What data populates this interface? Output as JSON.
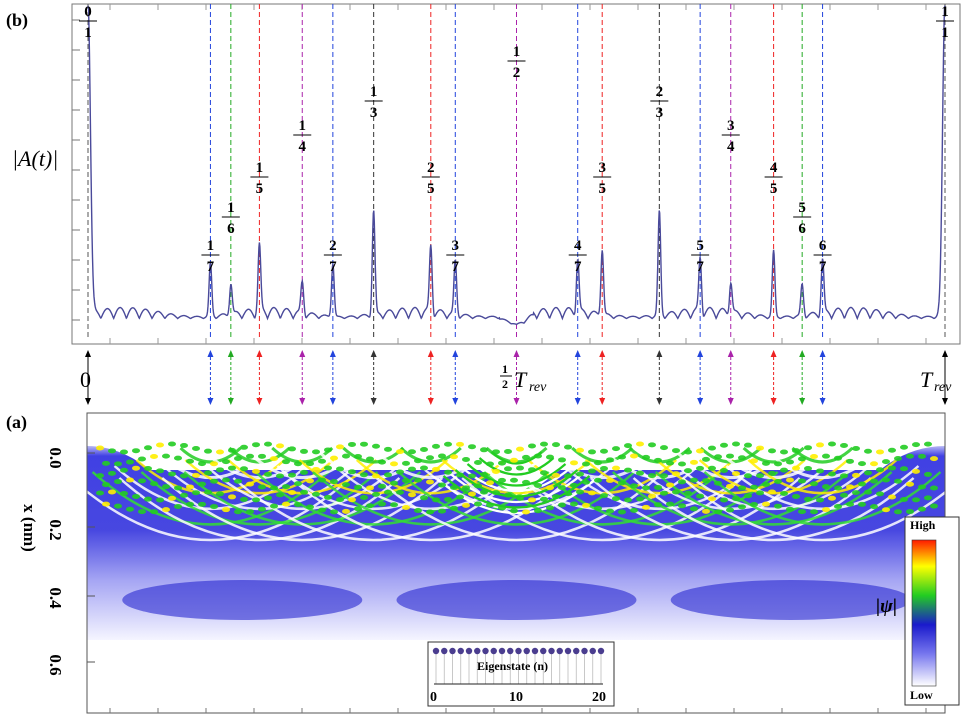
{
  "panel_b": {
    "label": "(b)",
    "ylabel": "|A(t)|",
    "time_labels": {
      "zero": "0",
      "half_num": "1",
      "half_den": "2",
      "half_text": "T",
      "half_sub": "rev",
      "end_text": "T",
      "end_sub": "rev"
    }
  },
  "panel_a": {
    "label": "(a)",
    "ylabel": "x (nm)",
    "yticks": [
      "0.0",
      "0.2",
      "0.4",
      "0.6"
    ],
    "colorbar": {
      "title": "|ψ|",
      "high": "High",
      "low": "Low",
      "colors": [
        "#ffffff",
        "#2222dd",
        "#22cc22",
        "#ffff00",
        "#ff2200"
      ]
    },
    "inset": {
      "xlabel": "Eigenstate (n)",
      "ticks": [
        "0",
        "10",
        "20"
      ],
      "n_points": 21,
      "point_color": "#4a3d8f"
    }
  },
  "chart_data": [
    {
      "type": "line",
      "title": "",
      "ylabel": "|A(t)|",
      "xlabel": "",
      "x_unit": "T_rev",
      "xlim": [
        0,
        1
      ],
      "line_color": "#4a4a9a",
      "revivals": [
        {
          "num": 0,
          "den": 1,
          "t": 0.0,
          "height": 1.0,
          "color": "#555555"
        },
        {
          "num": 1,
          "den": 7,
          "t": 0.142857,
          "height": 0.17,
          "color": "#2244dd"
        },
        {
          "num": 1,
          "den": 6,
          "t": 0.166667,
          "height": 0.1,
          "color": "#22aa22"
        },
        {
          "num": 1,
          "den": 5,
          "t": 0.2,
          "height": 0.21,
          "color": "#ee2222"
        },
        {
          "num": 1,
          "den": 4,
          "t": 0.25,
          "height": 0.1,
          "color": "#aa22aa"
        },
        {
          "num": 2,
          "den": 7,
          "t": 0.285714,
          "height": 0.17,
          "color": "#2244dd"
        },
        {
          "num": 1,
          "den": 3,
          "t": 0.333333,
          "height": 0.33,
          "color": "#333333"
        },
        {
          "num": 2,
          "den": 5,
          "t": 0.4,
          "height": 0.21,
          "color": "#ee2222"
        },
        {
          "num": 3,
          "den": 7,
          "t": 0.428571,
          "height": 0.17,
          "color": "#2244dd"
        },
        {
          "num": 1,
          "den": 2,
          "t": 0.5,
          "height": 0.0,
          "color": "#aa22aa"
        },
        {
          "num": 4,
          "den": 7,
          "t": 0.571429,
          "height": 0.17,
          "color": "#2244dd"
        },
        {
          "num": 3,
          "den": 5,
          "t": 0.6,
          "height": 0.21,
          "color": "#ee2222"
        },
        {
          "num": 2,
          "den": 3,
          "t": 0.666667,
          "height": 0.33,
          "color": "#333333"
        },
        {
          "num": 5,
          "den": 7,
          "t": 0.714286,
          "height": 0.17,
          "color": "#2244dd"
        },
        {
          "num": 3,
          "den": 4,
          "t": 0.75,
          "height": 0.1,
          "color": "#aa22aa"
        },
        {
          "num": 4,
          "den": 5,
          "t": 0.8,
          "height": 0.21,
          "color": "#ee2222"
        },
        {
          "num": 5,
          "den": 6,
          "t": 0.833333,
          "height": 0.1,
          "color": "#22aa22"
        },
        {
          "num": 6,
          "den": 7,
          "t": 0.857143,
          "height": 0.17,
          "color": "#2244dd"
        },
        {
          "num": 1,
          "den": 1,
          "t": 1.0,
          "height": 1.0,
          "color": "#555555"
        }
      ]
    },
    {
      "type": "heatmap",
      "title": "",
      "ylabel": "x (nm)",
      "ylim": [
        0.0,
        0.7
      ],
      "xlim": [
        0,
        1
      ],
      "colorbar_label": "|ψ|"
    },
    {
      "type": "scatter",
      "xlabel": "Eigenstate (n)",
      "x": [
        0,
        1,
        2,
        3,
        4,
        5,
        6,
        7,
        8,
        9,
        10,
        11,
        12,
        13,
        14,
        15,
        16,
        17,
        18,
        19,
        20
      ],
      "y": [
        1,
        1,
        1,
        1,
        1,
        1,
        1,
        1,
        1,
        1,
        1,
        1,
        1,
        1,
        1,
        1,
        1,
        1,
        1,
        1,
        1
      ],
      "xlim": [
        0,
        20
      ]
    }
  ]
}
